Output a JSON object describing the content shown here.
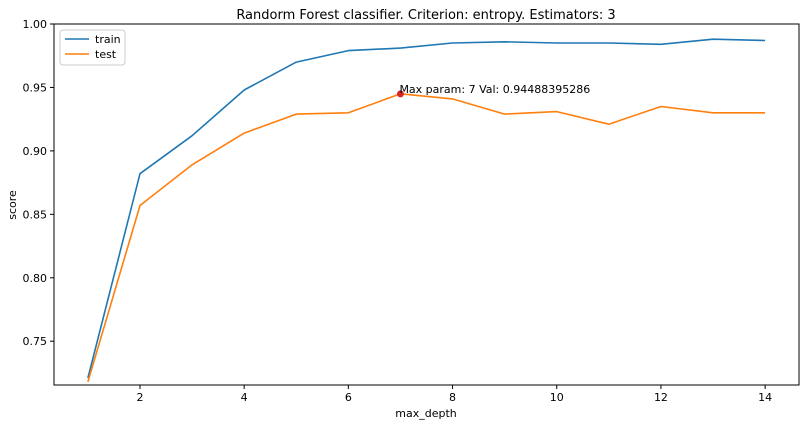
{
  "chart_data": {
    "type": "line",
    "title": "Randorm Forest classifier. Criterion: entropy. Estimators: 3",
    "xlabel": "max_depth",
    "ylabel": "score",
    "xlim": [
      0.35,
      14.65
    ],
    "ylim": [
      0.7155,
      1.0
    ],
    "xticks": [
      2,
      4,
      6,
      8,
      10,
      12,
      14
    ],
    "yticks": [
      0.75,
      0.8,
      0.85,
      0.9,
      0.95,
      1.0
    ],
    "ytick_labels": [
      "0.75",
      "0.80",
      "0.85",
      "0.90",
      "0.95",
      "1.00"
    ],
    "grid": false,
    "legend_position": "top-left",
    "x": [
      1,
      2,
      3,
      4,
      5,
      6,
      7,
      8,
      9,
      10,
      11,
      12,
      13,
      14
    ],
    "series": [
      {
        "name": "train",
        "color": "#1f77b4",
        "values": [
          0.721,
          0.882,
          0.912,
          0.948,
          0.97,
          0.979,
          0.981,
          0.985,
          0.986,
          0.985,
          0.985,
          0.984,
          0.988,
          0.987
        ]
      },
      {
        "name": "test",
        "color": "#ff7f0e",
        "values": [
          0.718,
          0.857,
          0.889,
          0.914,
          0.929,
          0.93,
          0.945,
          0.941,
          0.929,
          0.931,
          0.921,
          0.935,
          0.93,
          0.93
        ]
      }
    ],
    "annotation": {
      "text": "Max param: 7 Val: 0.94488395286",
      "x": 7,
      "y": 0.94488395286,
      "marker_color": "#d62728"
    }
  }
}
